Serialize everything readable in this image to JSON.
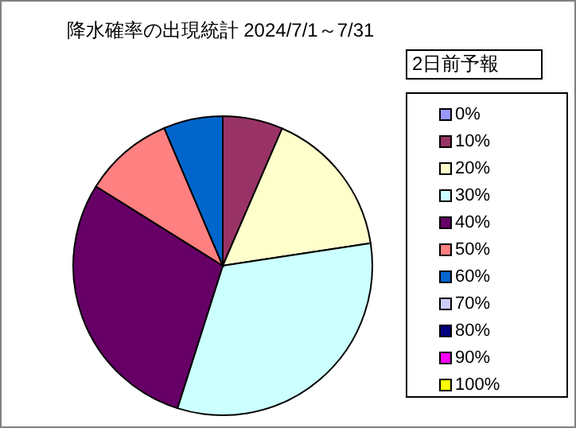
{
  "chart_data": {
    "type": "pie",
    "title": "降水確率の出現統計 2024/7/1～7/31",
    "legend_title": "2日前予報",
    "categories": [
      "0%",
      "10%",
      "20%",
      "30%",
      "40%",
      "50%",
      "60%",
      "70%",
      "80%",
      "90%",
      "100%"
    ],
    "values": [
      0,
      6.5,
      16.1,
      32.3,
      29.0,
      9.7,
      6.4,
      0,
      0,
      0,
      0
    ],
    "colors": [
      "#9999ff",
      "#993366",
      "#ffffcc",
      "#ccffff",
      "#660066",
      "#ff8080",
      "#0066cc",
      "#ccccff",
      "#000080",
      "#ff00ff",
      "#ffff00"
    ],
    "legend": "right"
  }
}
